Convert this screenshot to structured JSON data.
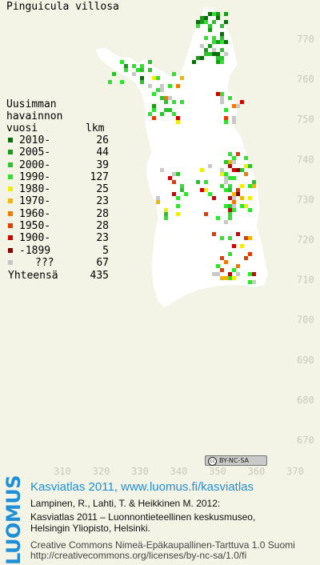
{
  "title": "Pinguicula villosa",
  "legend": {
    "heading_line1": "Uusimman",
    "heading_line2": "havainnon",
    "heading_line3": "vuosi",
    "count_heading": "lkm",
    "items": [
      {
        "label": "2010-",
        "count": "26",
        "color": "#0a6e0a"
      },
      {
        "label": "2005-",
        "count": "44",
        "color": "#1c9a1c"
      },
      {
        "label": "2000-",
        "count": "39",
        "color": "#2cc42c"
      },
      {
        "label": "1990-",
        "count": "127",
        "color": "#2ee42e"
      },
      {
        "label": "1980-",
        "count": "25",
        "color": "#f2ee00"
      },
      {
        "label": "1970-",
        "count": "23",
        "color": "#f2b600"
      },
      {
        "label": "1960-",
        "count": "28",
        "color": "#f27a00"
      },
      {
        "label": "1950-",
        "count": "28",
        "color": "#e43c00"
      },
      {
        "label": "1900-",
        "count": "23",
        "color": "#d00000"
      },
      {
        "label": "-1899",
        "count": "5",
        "color": "#8a0000"
      },
      {
        "label": "???",
        "count": "67",
        "color": "#c8c8c8"
      }
    ],
    "total_label": "Yhteensä",
    "total_count": "435"
  },
  "axis": {
    "x_ticks": [
      "310",
      "320",
      "330",
      "340",
      "350",
      "360",
      "370"
    ],
    "y_ticks": [
      "770",
      "760",
      "750",
      "740",
      "730",
      "720",
      "710",
      "700",
      "690",
      "680",
      "670"
    ]
  },
  "cc_badge": "BY-NC-SA",
  "logo_text": "LUOMUS",
  "footer": {
    "url_line": "Kasviatlas 2011, www.luomus.fi/kasviatlas",
    "ref_line1": "Lampinen, R., Lahti, T. & Heikkinen M. 2012:",
    "ref_line2": "Kasviatlas 2011 – Luonnontieteellinen keskusmuseo,",
    "ref_line3": "Helsingin Yliopisto, Helsinki.",
    "license_line1": "Creative Commons Nimeä-Epäkaupallinen-Tarttuva 1.0 Suomi",
    "license_line2": "http://creativecommons.org/licenses/by-nc-sa/1.0/fi"
  },
  "colors": {
    "background": "#f3f3e6",
    "land": "#ffffff",
    "grid": "#ddddd0",
    "tick_text": "#c8c8bc",
    "accent_blue": "#1f8fd6"
  }
}
